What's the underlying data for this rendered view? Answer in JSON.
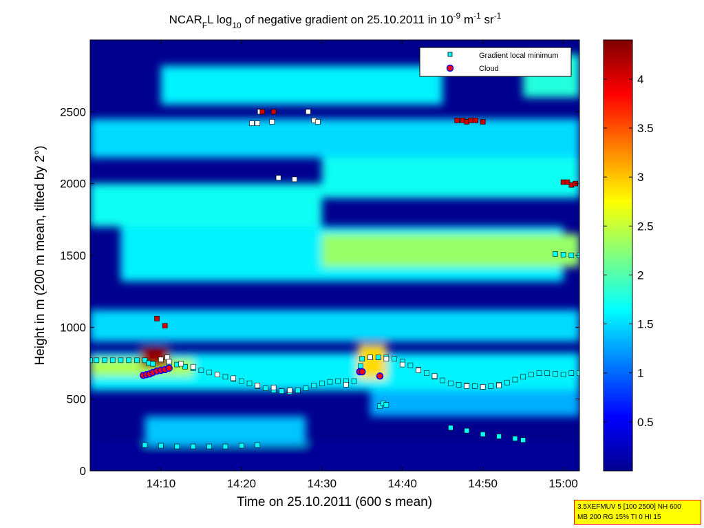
{
  "chart_data": {
    "type": "heatmap",
    "title": {
      "parts": [
        {
          "text": "NCAR",
          "style": "normal"
        },
        {
          "text": "F",
          "style": "sub"
        },
        {
          "text": "L log",
          "style": "normal"
        },
        {
          "text": "10",
          "style": "sub"
        },
        {
          "text": " of negative gradient on 25.10.2011 in 10",
          "style": "normal"
        },
        {
          "text": "-9",
          "style": "sup"
        },
        {
          "text": " m",
          "style": "normal"
        },
        {
          "text": "-1",
          "style": "sup"
        },
        {
          "text": " sr",
          "style": "normal"
        },
        {
          "text": "-1",
          "style": "sup"
        }
      ]
    },
    "xlabel": "Time on 25.10.2011 (600 s mean)",
    "ylabel": "Height in m (200 m mean, tilted by 2°)",
    "x_unit": "minutes after 14:00",
    "xlim": [
      1.2,
      62.0
    ],
    "ylim": [
      0,
      3000
    ],
    "x_ticks": [
      {
        "value": 10,
        "label": "14:10"
      },
      {
        "value": 20,
        "label": "14:20"
      },
      {
        "value": 30,
        "label": "14:30"
      },
      {
        "value": 40,
        "label": "14:40"
      },
      {
        "value": 50,
        "label": "14:50"
      },
      {
        "value": 60,
        "label": "15:00"
      }
    ],
    "y_ticks": [
      {
        "value": 0,
        "label": "0"
      },
      {
        "value": 500,
        "label": "500"
      },
      {
        "value": 1000,
        "label": "1000"
      },
      {
        "value": 1500,
        "label": "1500"
      },
      {
        "value": 2000,
        "label": "2000"
      },
      {
        "value": 2500,
        "label": "2500"
      }
    ],
    "colorbar": {
      "range": [
        0.0,
        4.4
      ],
      "colormap": "jet",
      "ticks": [
        {
          "value": 0.5,
          "label": "0.5"
        },
        {
          "value": 1,
          "label": "1"
        },
        {
          "value": 1.5,
          "label": "1.5"
        },
        {
          "value": 2,
          "label": "2"
        },
        {
          "value": 2.5,
          "label": "2.5"
        },
        {
          "value": 3,
          "label": "3"
        },
        {
          "value": 3.5,
          "label": "3.5"
        },
        {
          "value": 4,
          "label": "4"
        }
      ]
    },
    "heatmap_bands": [
      {
        "x": [
          1.2,
          62.0
        ],
        "y": [
          0,
          200
        ],
        "value": 0.05
      },
      {
        "x": [
          8.0,
          28.0
        ],
        "y": [
          180,
          380
        ],
        "value": 1.4
      },
      {
        "x": [
          36.0,
          62.0
        ],
        "y": [
          380,
          560
        ],
        "value": 1.3
      },
      {
        "x": [
          1.2,
          62.0
        ],
        "y": [
          560,
          820
        ],
        "value": 1.6
      },
      {
        "x": [
          1.2,
          14.0
        ],
        "y": [
          660,
          780
        ],
        "value": 2.4
      },
      {
        "x": [
          34.5,
          38.0
        ],
        "y": [
          640,
          880
        ],
        "value": 2.9
      },
      {
        "x": [
          7.5,
          11.0
        ],
        "y": [
          720,
          860
        ],
        "value": 4.3
      },
      {
        "x": [
          1.2,
          62.0
        ],
        "y": [
          900,
          1120
        ],
        "value": 1.5
      },
      {
        "x": [
          5.0,
          60.0
        ],
        "y": [
          1320,
          1700
        ],
        "value": 1.6
      },
      {
        "x": [
          30.0,
          62.0
        ],
        "y": [
          1420,
          1650
        ],
        "value": 2.3
      },
      {
        "x": [
          1.2,
          30.0
        ],
        "y": [
          1700,
          2000
        ],
        "value": 1.7
      },
      {
        "x": [
          30.0,
          62.0
        ],
        "y": [
          1900,
          2200
        ],
        "value": 1.7
      },
      {
        "x": [
          1.2,
          62.0
        ],
        "y": [
          2180,
          2450
        ],
        "value": 1.5
      },
      {
        "x": [
          10.0,
          45.0
        ],
        "y": [
          2550,
          2820
        ],
        "value": 1.6
      },
      {
        "x": [
          55.0,
          62.0
        ],
        "y": [
          2600,
          2900
        ],
        "value": 1.8
      }
    ],
    "series": [
      {
        "name": "Gradient local minimum",
        "marker": "square",
        "color": "#00ffff",
        "points": [
          [
            1.2,
            770
          ],
          [
            2,
            770
          ],
          [
            3,
            770
          ],
          [
            4,
            770
          ],
          [
            5,
            770
          ],
          [
            6,
            770
          ],
          [
            7,
            770
          ],
          [
            8,
            770
          ],
          [
            8.5,
            750
          ],
          [
            9,
            745
          ],
          [
            11,
            745
          ],
          [
            12,
            740
          ],
          [
            13,
            725
          ],
          [
            14,
            715
          ],
          [
            15,
            700
          ],
          [
            16,
            685
          ],
          [
            17,
            670
          ],
          [
            18,
            655
          ],
          [
            19,
            640
          ],
          [
            20,
            625
          ],
          [
            21,
            610
          ],
          [
            22,
            590
          ],
          [
            23,
            575
          ],
          [
            24,
            560
          ],
          [
            25,
            555
          ],
          [
            26,
            550
          ],
          [
            27,
            560
          ],
          [
            28,
            575
          ],
          [
            29,
            595
          ],
          [
            30,
            610
          ],
          [
            31,
            620
          ],
          [
            32,
            625
          ],
          [
            33,
            625
          ],
          [
            34,
            625
          ],
          [
            34.8,
            730
          ],
          [
            35,
            780
          ],
          [
            36,
            790
          ],
          [
            37,
            790
          ],
          [
            38,
            790
          ],
          [
            39,
            780
          ],
          [
            40,
            760
          ],
          [
            41,
            735
          ],
          [
            42,
            705
          ],
          [
            43,
            680
          ],
          [
            44,
            655
          ],
          [
            45,
            630
          ],
          [
            46,
            610
          ],
          [
            47,
            600
          ],
          [
            48,
            595
          ],
          [
            49,
            590
          ],
          [
            50,
            585
          ],
          [
            51,
            590
          ],
          [
            52,
            600
          ],
          [
            53,
            615
          ],
          [
            54,
            635
          ],
          [
            55,
            655
          ],
          [
            56,
            670
          ],
          [
            57,
            680
          ],
          [
            58,
            680
          ],
          [
            59,
            675
          ],
          [
            60,
            670
          ],
          [
            61,
            680
          ],
          [
            62,
            680
          ],
          [
            8,
            180
          ],
          [
            10,
            175
          ],
          [
            12,
            170
          ],
          [
            14,
            170
          ],
          [
            16,
            170
          ],
          [
            18,
            170
          ],
          [
            20,
            175
          ],
          [
            22,
            180
          ],
          [
            46,
            300
          ],
          [
            48,
            280
          ],
          [
            50,
            255
          ],
          [
            52,
            240
          ],
          [
            54,
            225
          ],
          [
            55,
            215
          ],
          [
            37.2,
            450
          ],
          [
            37.6,
            470
          ],
          [
            38,
            460
          ],
          [
            59,
            1510
          ],
          [
            60,
            1505
          ],
          [
            61,
            1500
          ],
          [
            62,
            1500
          ]
        ]
      },
      {
        "name": "",
        "marker": "square",
        "color": "#ffffff",
        "points": [
          [
            10,
            775
          ],
          [
            10.8,
            790
          ],
          [
            11,
            760
          ],
          [
            12.5,
            745
          ],
          [
            14,
            725
          ],
          [
            17,
            670
          ],
          [
            19,
            645
          ],
          [
            22,
            595
          ],
          [
            24,
            580
          ],
          [
            26,
            560
          ],
          [
            33,
            600
          ],
          [
            36,
            790
          ],
          [
            38,
            780
          ],
          [
            40,
            740
          ],
          [
            42,
            700
          ],
          [
            44,
            660
          ],
          [
            48,
            590
          ],
          [
            50,
            585
          ],
          [
            52,
            595
          ],
          [
            21.3,
            2420
          ],
          [
            22,
            2420
          ],
          [
            22.3,
            2500
          ],
          [
            23.8,
            2430
          ],
          [
            28.3,
            2500
          ],
          [
            29,
            2440
          ],
          [
            29.5,
            2430
          ],
          [
            24.6,
            2040
          ],
          [
            26.6,
            2030
          ]
        ]
      },
      {
        "name": "",
        "marker": "square",
        "color": "#cc0000",
        "points": [
          [
            9.5,
            1060
          ],
          [
            10.5,
            1010
          ],
          [
            22.6,
            2500
          ],
          [
            24,
            2500
          ],
          [
            46.8,
            2440
          ],
          [
            47.5,
            2440
          ],
          [
            48,
            2430
          ],
          [
            48.5,
            2440
          ],
          [
            49.1,
            2440
          ],
          [
            50,
            2430
          ],
          [
            60,
            2010
          ],
          [
            60.5,
            2010
          ],
          [
            61,
            1990
          ],
          [
            61.5,
            2000
          ]
        ]
      },
      {
        "name": "Cloud",
        "marker": "circle",
        "color": "#ff0000",
        "edge": "#0000ff",
        "points": [
          [
            7.8,
            665
          ],
          [
            8.2,
            670
          ],
          [
            8.6,
            675
          ],
          [
            9.0,
            685
          ],
          [
            9.5,
            695
          ],
          [
            10.0,
            700
          ],
          [
            10.5,
            705
          ],
          [
            11.0,
            715
          ],
          [
            34.7,
            690
          ],
          [
            35.0,
            690
          ],
          [
            37.2,
            660
          ]
        ]
      }
    ],
    "legend": {
      "placement": "top-right",
      "entries": [
        {
          "label": "Gradient local minimum",
          "marker": "square",
          "color": "#00ffff"
        },
        {
          "label": "Cloud",
          "marker": "circle",
          "color": "#ff0000"
        }
      ]
    }
  },
  "info_box": {
    "line1": "3.5XEFMUV 5 [100 2500] NH 600",
    "line2": "MB 200 RG 15% TI 0 HI 15"
  }
}
